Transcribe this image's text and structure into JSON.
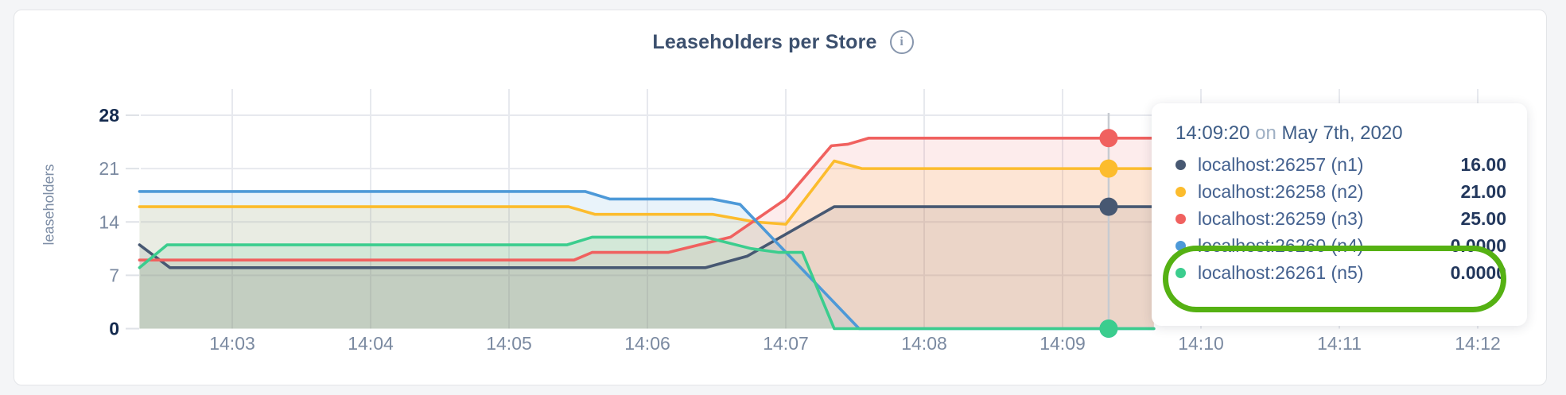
{
  "header": {
    "title": "Leaseholders per Store",
    "info_icon_glyph": "i"
  },
  "tooltip": {
    "time": "14:09:20",
    "on_word": "on",
    "date": "May 7th, 2020",
    "rows": [
      {
        "label": "localhost:26257 (n1)",
        "value": "16.00",
        "color": "#475872"
      },
      {
        "label": "localhost:26258 (n2)",
        "value": "21.00",
        "color": "#fcbc2d"
      },
      {
        "label": "localhost:26259 (n3)",
        "value": "25.00",
        "color": "#f0615f"
      },
      {
        "label": "localhost:26260 (n4)",
        "value": "0.0000",
        "color": "#4d99d8"
      },
      {
        "label": "localhost:26261 (n5)",
        "value": "0.0000",
        "color": "#3bcd8e"
      }
    ],
    "annotation_color": "#55b113"
  },
  "chart_data": {
    "type": "area",
    "title": "Leaseholders per Store",
    "ylabel": "leaseholders",
    "xlabel": "",
    "ylim": [
      0,
      28
    ],
    "y_ticks": [
      0,
      7,
      14,
      21,
      28
    ],
    "y_ticks_bold": [
      0,
      28
    ],
    "x_domain_minutes_after_1400": [
      2.33,
      12.26
    ],
    "x_ticks": [
      {
        "m": 3,
        "label": "14:03"
      },
      {
        "m": 4,
        "label": "14:04"
      },
      {
        "m": 5,
        "label": "14:05"
      },
      {
        "m": 6,
        "label": "14:06"
      },
      {
        "m": 7,
        "label": "14:07"
      },
      {
        "m": 8,
        "label": "14:08"
      },
      {
        "m": 9,
        "label": "14:09"
      },
      {
        "m": 10,
        "label": "14:10"
      },
      {
        "m": 11,
        "label": "14:11"
      },
      {
        "m": 12,
        "label": "14:12"
      }
    ],
    "grid": true,
    "legend_position": "tooltip-only",
    "series": [
      {
        "name": "localhost:26257 (n1)",
        "color": "#475872",
        "points": [
          [
            2.33,
            11
          ],
          [
            2.55,
            8
          ],
          [
            6.42,
            8
          ],
          [
            6.72,
            9.5
          ],
          [
            7.35,
            16
          ],
          [
            9.66,
            16
          ]
        ]
      },
      {
        "name": "localhost:26258 (n2)",
        "color": "#fcbc2d",
        "points": [
          [
            2.33,
            16
          ],
          [
            5.43,
            16
          ],
          [
            5.62,
            15
          ],
          [
            6.47,
            15
          ],
          [
            6.78,
            14
          ],
          [
            7.0,
            13.7
          ],
          [
            7.35,
            22
          ],
          [
            7.55,
            21
          ],
          [
            9.66,
            21
          ]
        ]
      },
      {
        "name": "localhost:26259 (n3)",
        "color": "#f0615f",
        "points": [
          [
            2.33,
            9
          ],
          [
            5.47,
            9
          ],
          [
            5.6,
            10
          ],
          [
            6.15,
            10
          ],
          [
            6.6,
            12
          ],
          [
            7.0,
            17
          ],
          [
            7.33,
            24
          ],
          [
            7.45,
            24.2
          ],
          [
            7.6,
            25
          ],
          [
            9.66,
            25
          ]
        ]
      },
      {
        "name": "localhost:26260 (n4)",
        "color": "#4d99d8",
        "points": [
          [
            2.33,
            18
          ],
          [
            5.55,
            18
          ],
          [
            5.73,
            17
          ],
          [
            6.47,
            17
          ],
          [
            6.67,
            16.3
          ],
          [
            7.53,
            0
          ],
          [
            9.66,
            0
          ]
        ]
      },
      {
        "name": "localhost:26261 (n5)",
        "color": "#3bcd8e",
        "points": [
          [
            2.33,
            8
          ],
          [
            2.53,
            11
          ],
          [
            5.42,
            11
          ],
          [
            5.6,
            12
          ],
          [
            6.42,
            12
          ],
          [
            6.75,
            10.5
          ],
          [
            6.95,
            10
          ],
          [
            7.12,
            10
          ],
          [
            7.35,
            0
          ],
          [
            9.66,
            0
          ]
        ]
      }
    ],
    "hover": {
      "time_label": "14:09:20",
      "time_m": 9.333,
      "marker_values": [
        16,
        21,
        25,
        0,
        0
      ],
      "line_color": "#c7cbd1"
    },
    "fill_opacity": 0.12,
    "grid_color": "#e7e9ee",
    "tick_label_color": "#7b8aa1",
    "tick_label_bold_color": "#142a4e"
  }
}
